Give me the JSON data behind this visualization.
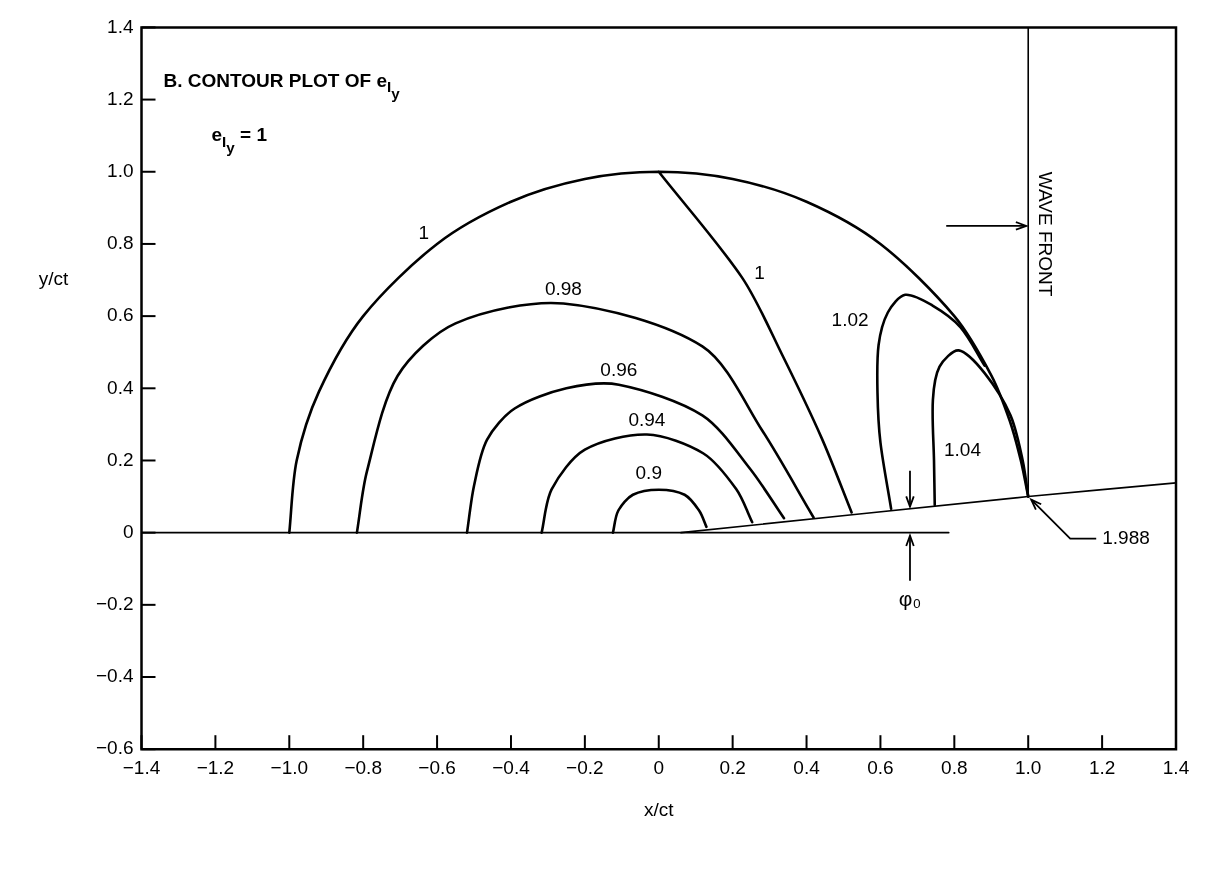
{
  "chart_data": {
    "type": "line",
    "title": "B. CONTOUR PLOT OF e$_{I}$$_{y}$",
    "xlabel": "x/ct",
    "ylabel": "y/ct",
    "xlim": [
      -1.4,
      1.4
    ],
    "ylim": [
      -0.6,
      1.4
    ],
    "xticks": [
      {
        "value": -1.4,
        "label": "−1.4"
      },
      {
        "value": -1.2,
        "label": "−1.2"
      },
      {
        "value": -1,
        "label": "−1.0"
      },
      {
        "value": -0.8,
        "label": "−0.8"
      },
      {
        "value": -0.6,
        "label": "−0.6"
      },
      {
        "value": -0.4,
        "label": "−0.4"
      },
      {
        "value": -0.2,
        "label": "−0.2"
      },
      0,
      0.2,
      0.4,
      0.6,
      0.8,
      {
        "value": 1,
        "label": "1.0"
      },
      1.2,
      1.4
    ],
    "yticks": [
      {
        "value": -0.6,
        "label": "−0.6"
      },
      {
        "value": -0.4,
        "label": "−0.4"
      },
      {
        "value": -0.2,
        "label": "−0.2"
      },
      0,
      0.2,
      0.4,
      0.6,
      0.8,
      {
        "value": 1,
        "label": "1.0"
      },
      1.2,
      1.4
    ],
    "grid": false,
    "legend": false,
    "marker": "none",
    "line_style": "solid",
    "series": [
      {
        "name": "1",
        "color": "#000000",
        "x": [
          -1,
          -0.98,
          -0.92,
          -0.8,
          -0.6,
          -0.4,
          -0.2,
          0,
          0.2,
          0.4,
          0.6,
          0.8,
          0.9,
          0.95,
          0.98,
          1.0,
          null,
          0,
          0.226,
          0.333,
          0.441,
          0.522
        ],
        "values": [
          0,
          0.2,
          0.39,
          0.6,
          0.8,
          0.917,
          0.98,
          1,
          0.98,
          0.917,
          0.8,
          0.6,
          0.436,
          0.31,
          0.2,
          0.1,
          null,
          1,
          0.706,
          0.495,
          0.262,
          0.056
        ]
      },
      {
        "name": "0.98",
        "color": "#000000",
        "x": [
          -0.817,
          -0.79,
          -0.707,
          -0.55,
          -0.258,
          0.118,
          0.28,
          0.419
        ],
        "values": [
          0,
          0.169,
          0.434,
          0.58,
          0.635,
          0.516,
          0.283,
          0.042
        ]
      },
      {
        "name": "0.96",
        "color": "#000000",
        "x": [
          -0.519,
          -0.5,
          -0.465,
          -0.39,
          -0.25,
          -0.108,
          0.118,
          0.247,
          0.339
        ],
        "values": [
          0,
          0.13,
          0.257,
          0.344,
          0.4,
          0.41,
          0.325,
          0.177,
          0.04
        ]
      },
      {
        "name": "0.94",
        "color": "#000000",
        "x": [
          -0.317,
          -0.29,
          -0.2,
          -0.032,
          0.12,
          0.21,
          0.253
        ],
        "values": [
          0,
          0.12,
          0.23,
          0.272,
          0.22,
          0.12,
          0.029
        ]
      },
      {
        "name": "0.9",
        "color": "#000000",
        "x": [
          -0.124,
          -0.11,
          -0.07,
          0,
          0.07,
          0.11,
          0.129
        ],
        "values": [
          0,
          0.06,
          0.105,
          0.119,
          0.105,
          0.06,
          0.016
        ]
      },
      {
        "name": "1.02",
        "color": "#000000",
        "x": [
          0.629,
          0.6,
          0.592,
          0.595,
          0.62,
          0.667,
          0.74,
          0.817,
          0.882
        ],
        "values": [
          0.066,
          0.25,
          0.389,
          0.52,
          0.61,
          0.659,
          0.63,
          0.569,
          0.463
        ]
      },
      {
        "name": "1.04",
        "color": "#000000",
        "x": [
          0.747,
          0.745,
          0.742,
          0.76,
          0.812,
          0.882,
          0.952,
          0.985,
          1.0
        ],
        "values": [
          0.077,
          0.2,
          0.368,
          0.46,
          0.505,
          0.442,
          0.325,
          0.2,
          0.1
        ]
      },
      {
        "color": "#000000",
        "x": [
          -1.4,
          0.785
        ],
        "values": [
          0,
          0
        ]
      },
      {
        "color": "#000000",
        "x": [
          0.06,
          1.0,
          1.4
        ],
        "values": [
          0,
          0.1,
          0.138
        ]
      },
      {
        "color": "#000000",
        "x": [
          1.0,
          1.0
        ],
        "values": [
          0.1,
          1.4
        ]
      }
    ],
    "annotations": [
      "e$_{I}$$_{y}$ = 1",
      "WAVE FRONT",
      {
        "text": "1.988",
        "x": 1.0,
        "y": 0.1
      },
      {
        "text": "φ₀",
        "x": 0.68,
        "y": 0
      }
    ]
  }
}
